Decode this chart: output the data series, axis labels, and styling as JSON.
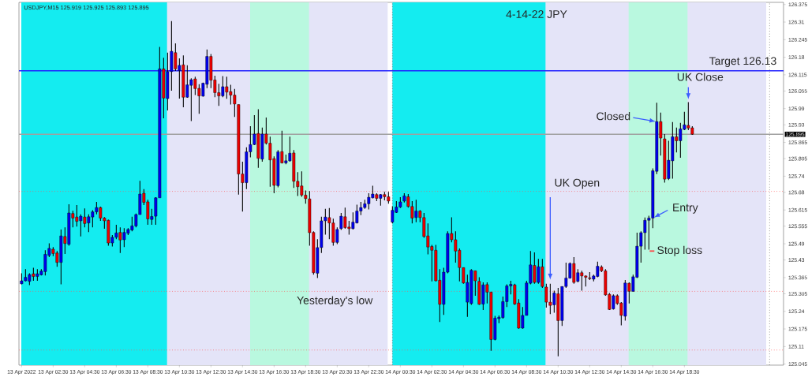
{
  "chart_data": {
    "type": "candlestick",
    "title": "4-14-22  JPY",
    "subtitle": "USDJPY,M15  125.919 125.925 125.893 125.895",
    "x": [
      "2022-04-13T00:30",
      "2022-04-13T00:45",
      "2022-04-13T01:00",
      "2022-04-13T01:15",
      "2022-04-13T01:30",
      "2022-04-13T01:45",
      "2022-04-13T02:00",
      "2022-04-13T02:15",
      "2022-04-13T02:30",
      "2022-04-13T02:45",
      "2022-04-13T03:00",
      "2022-04-13T03:15",
      "2022-04-13T03:30",
      "2022-04-13T03:45",
      "2022-04-13T04:00",
      "2022-04-13T04:15",
      "2022-04-13T04:30",
      "2022-04-13T04:45",
      "2022-04-13T05:00",
      "2022-04-13T05:15",
      "2022-04-13T05:30",
      "2022-04-13T05:45",
      "2022-04-13T06:00",
      "2022-04-13T06:15",
      "2022-04-13T06:30",
      "2022-04-13T06:45",
      "2022-04-13T07:00",
      "2022-04-13T07:15",
      "2022-04-13T07:30",
      "2022-04-13T07:45",
      "2022-04-13T08:00",
      "2022-04-13T08:15",
      "2022-04-13T08:30",
      "2022-04-13T08:45",
      "2022-04-13T09:00",
      "2022-04-13T09:15",
      "2022-04-13T09:30",
      "2022-04-13T09:45",
      "2022-04-13T10:00",
      "2022-04-13T10:15",
      "2022-04-13T10:30",
      "2022-04-13T10:45",
      "2022-04-13T11:00",
      "2022-04-13T11:15",
      "2022-04-13T11:30",
      "2022-04-13T11:45",
      "2022-04-13T12:00",
      "2022-04-13T12:15",
      "2022-04-13T12:30",
      "2022-04-13T12:45",
      "2022-04-13T13:00",
      "2022-04-13T13:15",
      "2022-04-13T13:30",
      "2022-04-13T13:45",
      "2022-04-13T14:00",
      "2022-04-13T14:15",
      "2022-04-13T14:30",
      "2022-04-13T14:45",
      "2022-04-13T15:00",
      "2022-04-13T15:15",
      "2022-04-13T15:30",
      "2022-04-13T15:45",
      "2022-04-13T16:00",
      "2022-04-13T16:15",
      "2022-04-13T16:30",
      "2022-04-13T16:45",
      "2022-04-13T17:00",
      "2022-04-13T17:15",
      "2022-04-13T17:30",
      "2022-04-13T17:45",
      "2022-04-13T18:00",
      "2022-04-13T18:15",
      "2022-04-13T18:30",
      "2022-04-13T18:45",
      "2022-04-13T19:00",
      "2022-04-13T19:15",
      "2022-04-13T19:30",
      "2022-04-13T19:45",
      "2022-04-13T20:00",
      "2022-04-13T20:15",
      "2022-04-13T20:30",
      "2022-04-13T20:45",
      "2022-04-13T21:00",
      "2022-04-13T21:15",
      "2022-04-13T21:30",
      "2022-04-13T21:45",
      "2022-04-13T22:00",
      "2022-04-13T22:15",
      "2022-04-13T22:30",
      "2022-04-13T22:45",
      "2022-04-13T23:00",
      "2022-04-13T23:15",
      "2022-04-13T23:30",
      "2022-04-13T23:45",
      "2022-04-14T00:00",
      "2022-04-14T00:15",
      "2022-04-14T00:30",
      "2022-04-14T00:45",
      "2022-04-14T01:00",
      "2022-04-14T01:15",
      "2022-04-14T01:30",
      "2022-04-14T01:45",
      "2022-04-14T02:00",
      "2022-04-14T02:15",
      "2022-04-14T02:30",
      "2022-04-14T02:45",
      "2022-04-14T03:00",
      "2022-04-14T03:15",
      "2022-04-14T03:30",
      "2022-04-14T03:45",
      "2022-04-14T04:00",
      "2022-04-14T04:15",
      "2022-04-14T04:30",
      "2022-04-14T04:45",
      "2022-04-14T05:00",
      "2022-04-14T05:15",
      "2022-04-14T05:30",
      "2022-04-14T05:45",
      "2022-04-14T06:00",
      "2022-04-14T06:15",
      "2022-04-14T06:30",
      "2022-04-14T06:45",
      "2022-04-14T07:00",
      "2022-04-14T07:15",
      "2022-04-14T07:30",
      "2022-04-14T07:45",
      "2022-04-14T08:00",
      "2022-04-14T08:15",
      "2022-04-14T08:30",
      "2022-04-14T08:45",
      "2022-04-14T09:00",
      "2022-04-14T09:15",
      "2022-04-14T09:30",
      "2022-04-14T09:45",
      "2022-04-14T10:00",
      "2022-04-14T10:15",
      "2022-04-14T10:30",
      "2022-04-14T10:45",
      "2022-04-14T11:00",
      "2022-04-14T11:15",
      "2022-04-14T11:30",
      "2022-04-14T11:45",
      "2022-04-14T12:00",
      "2022-04-14T12:15",
      "2022-04-14T12:30",
      "2022-04-14T12:45",
      "2022-04-14T13:00",
      "2022-04-14T13:15",
      "2022-04-14T13:30",
      "2022-04-14T13:45",
      "2022-04-14T14:00",
      "2022-04-14T14:15",
      "2022-04-14T14:30",
      "2022-04-14T14:45",
      "2022-04-14T15:00",
      "2022-04-14T15:15",
      "2022-04-14T15:30",
      "2022-04-14T15:45",
      "2022-04-14T16:00",
      "2022-04-14T16:15",
      "2022-04-14T16:30",
      "2022-04-14T16:45",
      "2022-04-14T17:00",
      "2022-04-14T17:15",
      "2022-04-14T17:30",
      "2022-04-14T17:45",
      "2022-04-14T18:00",
      "2022-04-14T18:15",
      "2022-04-14T18:30",
      "2022-04-14T18:45",
      "2022-04-14T19:00"
    ],
    "ohlc": [
      [
        125.342,
        125.381,
        125.34,
        125.353
      ],
      [
        125.353,
        125.396,
        125.351,
        125.366
      ],
      [
        125.351,
        125.381,
        125.337,
        125.376
      ],
      [
        125.379,
        125.401,
        125.353,
        125.369
      ],
      [
        125.369,
        125.396,
        125.353,
        125.379
      ],
      [
        125.375,
        125.396,
        125.373,
        125.389
      ],
      [
        125.387,
        125.466,
        125.373,
        125.451
      ],
      [
        125.447,
        125.492,
        125.441,
        125.473
      ],
      [
        125.47,
        125.478,
        125.444,
        125.454
      ],
      [
        125.456,
        125.463,
        125.405,
        125.421
      ],
      [
        125.421,
        125.543,
        125.34,
        125.519
      ],
      [
        125.517,
        125.551,
        125.452,
        125.491
      ],
      [
        125.488,
        125.636,
        125.483,
        125.604
      ],
      [
        125.602,
        125.612,
        125.551,
        125.585
      ],
      [
        125.589,
        125.633,
        125.554,
        125.573
      ],
      [
        125.575,
        125.599,
        125.517,
        125.592
      ],
      [
        125.589,
        125.621,
        125.551,
        125.565
      ],
      [
        125.567,
        125.599,
        125.533,
        125.59
      ],
      [
        125.589,
        125.614,
        125.551,
        125.608
      ],
      [
        125.608,
        125.645,
        125.599,
        125.624
      ],
      [
        125.624,
        125.627,
        125.575,
        125.585
      ],
      [
        125.585,
        125.589,
        125.546,
        125.575
      ],
      [
        125.577,
        125.579,
        125.483,
        125.493
      ],
      [
        125.493,
        125.522,
        125.48,
        125.514
      ],
      [
        125.514,
        125.56,
        125.507,
        125.53
      ],
      [
        125.532,
        125.551,
        125.456,
        125.504
      ],
      [
        125.505,
        125.548,
        125.478,
        125.532
      ],
      [
        125.529,
        125.548,
        125.522,
        125.543
      ],
      [
        125.541,
        125.59,
        125.536,
        125.556
      ],
      [
        125.556,
        125.602,
        125.551,
        125.598
      ],
      [
        125.598,
        125.723,
        125.598,
        125.674
      ],
      [
        125.677,
        125.692,
        125.633,
        125.643
      ],
      [
        125.645,
        125.653,
        125.56,
        125.582
      ],
      [
        125.58,
        125.619,
        125.56,
        125.591
      ],
      [
        125.592,
        125.662,
        125.56,
        125.66
      ],
      [
        125.66,
        126.218,
        125.66,
        126.137
      ],
      [
        126.137,
        126.178,
        125.954,
        126.029
      ],
      [
        126.027,
        126.197,
        125.983,
        126.127
      ],
      [
        126.127,
        126.314,
        126.056,
        126.202
      ],
      [
        126.197,
        126.231,
        126.129,
        126.137
      ],
      [
        126.131,
        126.176,
        126.027,
        126.15
      ],
      [
        126.152,
        126.187,
        125.995,
        126.032
      ],
      [
        126.032,
        126.15,
        126.03,
        126.078
      ],
      [
        126.076,
        126.102,
        125.944,
        126.097
      ],
      [
        126.1,
        126.108,
        126.04,
        126.064
      ],
      [
        126.065,
        126.08,
        125.971,
        126.037
      ],
      [
        126.036,
        126.086,
        126.034,
        126.084
      ],
      [
        126.08,
        126.209,
        126.066,
        126.183
      ],
      [
        126.183,
        126.192,
        126.066,
        126.095
      ],
      [
        126.096,
        126.112,
        126.032,
        126.049
      ],
      [
        126.049,
        126.082,
        126.0,
        126.037
      ],
      [
        126.037,
        126.11,
        126.032,
        126.071
      ],
      [
        126.071,
        126.108,
        126.026,
        126.051
      ],
      [
        126.053,
        126.078,
        126.005,
        126.04
      ],
      [
        126.04,
        126.063,
        125.959,
        126.007
      ],
      [
        126.005,
        126.005,
        125.672,
        125.748
      ],
      [
        125.748,
        125.794,
        125.609,
        125.716
      ],
      [
        125.716,
        125.847,
        125.692,
        125.83
      ],
      [
        125.83,
        125.925,
        125.81,
        125.857
      ],
      [
        125.857,
        125.966,
        125.855,
        125.896
      ],
      [
        125.898,
        125.988,
        125.771,
        125.806
      ],
      [
        125.803,
        125.92,
        125.794,
        125.896
      ],
      [
        125.896,
        125.957,
        125.857,
        125.862
      ],
      [
        125.862,
        125.886,
        125.701,
        125.8
      ],
      [
        125.805,
        125.813,
        125.677,
        125.706
      ],
      [
        125.705,
        125.837,
        125.699,
        125.83
      ],
      [
        125.831,
        125.908,
        125.787,
        125.789
      ],
      [
        125.789,
        125.82,
        125.784,
        125.797
      ],
      [
        125.797,
        125.886,
        125.794,
        125.825
      ],
      [
        125.826,
        125.837,
        125.697,
        125.721
      ],
      [
        125.721,
        125.755,
        125.667,
        125.701
      ],
      [
        125.704,
        125.758,
        125.664,
        125.67
      ],
      [
        125.67,
        125.687,
        125.638,
        125.657
      ],
      [
        125.656,
        125.685,
        125.483,
        125.531
      ],
      [
        125.532,
        125.536,
        125.376,
        125.383
      ],
      [
        125.381,
        125.507,
        125.363,
        125.476
      ],
      [
        125.476,
        125.59,
        125.456,
        125.575
      ],
      [
        125.575,
        125.619,
        125.524,
        125.589
      ],
      [
        125.587,
        125.622,
        125.507,
        125.567
      ],
      [
        125.567,
        125.583,
        125.483,
        125.495
      ],
      [
        125.495,
        125.551,
        125.489,
        125.543
      ],
      [
        125.546,
        125.604,
        125.541,
        125.592
      ],
      [
        125.59,
        125.624,
        125.546,
        125.55
      ],
      [
        125.552,
        125.575,
        125.524,
        125.546
      ],
      [
        125.546,
        125.606,
        125.543,
        125.57
      ],
      [
        125.567,
        125.635,
        125.565,
        125.611
      ],
      [
        125.611,
        125.645,
        125.596,
        125.624
      ],
      [
        125.624,
        125.653,
        125.619,
        125.638
      ],
      [
        125.638,
        125.677,
        125.617,
        125.662
      ],
      [
        125.66,
        125.705,
        125.658,
        125.674
      ],
      [
        125.672,
        125.677,
        125.648,
        125.658
      ],
      [
        125.658,
        125.674,
        125.631,
        125.672
      ],
      [
        125.672,
        125.682,
        125.651,
        125.664
      ],
      [
        125.664,
        125.682,
        125.638,
        125.648
      ],
      [
        125.57,
        125.628,
        125.565,
        125.614
      ],
      [
        125.606,
        125.648,
        125.604,
        125.626
      ],
      [
        125.626,
        125.662,
        125.622,
        125.645
      ],
      [
        125.648,
        125.677,
        125.643,
        125.667
      ],
      [
        125.664,
        125.674,
        125.624,
        125.628
      ],
      [
        125.628,
        125.648,
        125.565,
        125.585
      ],
      [
        125.587,
        125.653,
        125.57,
        125.611
      ],
      [
        125.611,
        125.614,
        125.57,
        125.587
      ],
      [
        125.587,
        125.604,
        125.512,
        125.517
      ],
      [
        125.519,
        125.565,
        125.451,
        125.478
      ],
      [
        125.48,
        125.486,
        125.351,
        125.466
      ],
      [
        125.466,
        125.486,
        125.351,
        125.353
      ],
      [
        125.355,
        125.396,
        125.201,
        125.266
      ],
      [
        125.266,
        125.401,
        125.227,
        125.385
      ],
      [
        125.385,
        125.536,
        125.381,
        125.528
      ],
      [
        125.528,
        125.588,
        125.495,
        125.505
      ],
      [
        125.505,
        125.536,
        125.42,
        125.463
      ],
      [
        125.466,
        125.473,
        125.351,
        125.402
      ],
      [
        125.402,
        125.402,
        125.342,
        125.345
      ],
      [
        125.274,
        125.376,
        125.22,
        125.347
      ],
      [
        125.269,
        125.396,
        125.264,
        125.392
      ],
      [
        125.39,
        125.39,
        125.298,
        125.353
      ],
      [
        125.351,
        125.366,
        125.264,
        125.266
      ],
      [
        125.267,
        125.347,
        125.245,
        125.338
      ],
      [
        125.339,
        125.347,
        125.269,
        125.311
      ],
      [
        125.311,
        125.313,
        125.094,
        125.136
      ],
      [
        125.136,
        125.223,
        125.133,
        125.215
      ],
      [
        125.213,
        125.225,
        125.196,
        125.218
      ],
      [
        125.217,
        125.295,
        125.213,
        125.276
      ],
      [
        125.276,
        125.34,
        125.256,
        125.334
      ],
      [
        125.334,
        125.353,
        125.303,
        125.34
      ],
      [
        125.338,
        125.342,
        125.264,
        125.267
      ],
      [
        125.271,
        125.285,
        125.176,
        125.178
      ],
      [
        125.178,
        125.256,
        125.176,
        125.225
      ],
      [
        125.225,
        125.353,
        125.225,
        125.345
      ],
      [
        125.344,
        125.463,
        125.34,
        125.412
      ],
      [
        125.41,
        125.458,
        125.342,
        125.347
      ],
      [
        125.347,
        125.434,
        125.342,
        125.405
      ],
      [
        125.405,
        125.434,
        125.327,
        125.332
      ],
      [
        125.33,
        125.342,
        125.254,
        125.274
      ],
      [
        125.274,
        125.342,
        125.23,
        125.262
      ],
      [
        125.264,
        125.317,
        125.235,
        125.308
      ],
      [
        125.305,
        125.327,
        125.074,
        125.206
      ],
      [
        125.206,
        125.332,
        125.186,
        125.332
      ],
      [
        125.332,
        125.42,
        125.327,
        125.363
      ],
      [
        125.363,
        125.421,
        125.361,
        125.417
      ],
      [
        125.417,
        125.441,
        125.342,
        125.347
      ],
      [
        125.351,
        125.396,
        125.347,
        125.383
      ],
      [
        125.383,
        125.39,
        125.317,
        125.371
      ],
      [
        125.371,
        125.373,
        125.332,
        125.366
      ],
      [
        125.364,
        125.385,
        125.356,
        125.361
      ],
      [
        125.359,
        125.376,
        125.351,
        125.371
      ],
      [
        125.369,
        125.424,
        125.366,
        125.407
      ],
      [
        125.404,
        125.41,
        125.385,
        125.39
      ],
      [
        125.39,
        125.396,
        125.298,
        125.301
      ],
      [
        125.303,
        125.308,
        125.245,
        125.247
      ],
      [
        125.249,
        125.303,
        125.247,
        125.298
      ],
      [
        125.298,
        125.303,
        125.264,
        125.269
      ],
      [
        125.271,
        125.274,
        125.188,
        125.225
      ],
      [
        125.222,
        125.356,
        125.206,
        125.345
      ],
      [
        125.344,
        125.347,
        125.269,
        125.314
      ],
      [
        125.314,
        125.376,
        125.313,
        125.368
      ],
      [
        125.366,
        125.531,
        125.363,
        125.481
      ],
      [
        125.481,
        125.536,
        125.42,
        125.531
      ],
      [
        125.531,
        125.587,
        125.468,
        125.577
      ],
      [
        125.577,
        125.594,
        125.468,
        125.585
      ],
      [
        125.585,
        125.769,
        125.548,
        125.76
      ],
      [
        125.758,
        126.012,
        125.748,
        125.942
      ],
      [
        125.942,
        125.975,
        125.816,
        125.881
      ],
      [
        125.878,
        125.896,
        125.716,
        125.729
      ],
      [
        125.731,
        125.871,
        125.726,
        125.799
      ],
      [
        125.797,
        125.94,
        125.731,
        125.886
      ],
      [
        125.886,
        125.92,
        125.828,
        125.871
      ],
      [
        125.871,
        125.937,
        125.808,
        125.915
      ],
      [
        125.913,
        125.978,
        125.91,
        125.93
      ],
      [
        125.928,
        126.014,
        125.91,
        125.918
      ],
      [
        125.919,
        125.925,
        125.893,
        125.895
      ]
    ],
    "colors": [
      "#0000ee",
      "#0000ee",
      "#0000ee",
      "#ee0000",
      "#0000ee",
      "#0000ee",
      "#0000ee",
      "#0000ee",
      "#ee0000",
      "#ee0000",
      "#0000ee",
      "#ee0000",
      "#0000ee",
      "#ee0000",
      "#ee0000",
      "#0000ee",
      "#ee0000",
      "#0000ee",
      "#0000ee",
      "#0000ee",
      "#ee0000",
      "#ee0000",
      "#ee0000",
      "#0000ee",
      "#0000ee",
      "#ee0000",
      "#0000ee",
      "#0000ee",
      "#0000ee",
      "#0000ee",
      "#0000ee",
      "#ee0000",
      "#ee0000",
      "#0000ee",
      "#0000ee",
      "#0000ee",
      "#ee0000",
      "#0000ee",
      "#0000ee",
      "#ee0000",
      "#0000ee",
      "#ee0000",
      "#0000ee",
      "#0000ee",
      "#ee0000",
      "#ee0000",
      "#0000ee",
      "#0000ee",
      "#ee0000",
      "#ee0000",
      "#ee0000",
      "#0000ee",
      "#ee0000",
      "#ee0000",
      "#ee0000",
      "#ee0000",
      "#ee0000",
      "#0000ee",
      "#0000ee",
      "#0000ee",
      "#ee0000",
      "#0000ee",
      "#ee0000",
      "#ee0000",
      "#ee0000",
      "#0000ee",
      "#ee0000",
      "#0000ee",
      "#0000ee",
      "#ee0000",
      "#ee0000",
      "#ee0000",
      "#ee0000",
      "#ee0000",
      "#ee0000",
      "#0000ee",
      "#0000ee",
      "#0000ee",
      "#ee0000",
      "#ee0000",
      "#0000ee",
      "#0000ee",
      "#ee0000",
      "#ee0000",
      "#0000ee",
      "#0000ee",
      "#0000ee",
      "#0000ee",
      "#0000ee",
      "#0000ee",
      "#ee0000",
      "#0000ee",
      "#ee0000",
      "#ee0000",
      "#0000ee",
      "#0000ee",
      "#0000ee",
      "#0000ee",
      "#ee0000",
      "#ee0000",
      "#0000ee",
      "#ee0000",
      "#ee0000",
      "#ee0000",
      "#ee0000",
      "#ee0000",
      "#ee0000",
      "#0000ee",
      "#0000ee",
      "#ee0000",
      "#ee0000",
      "#ee0000",
      "#ee0000",
      "#0000ee",
      "#0000ee",
      "#ee0000",
      "#ee0000",
      "#0000ee",
      "#ee0000",
      "#ee0000",
      "#0000ee",
      "#0000ee",
      "#0000ee",
      "#0000ee",
      "#0000ee",
      "#ee0000",
      "#ee0000",
      "#0000ee",
      "#0000ee",
      "#0000ee",
      "#ee0000",
      "#0000ee",
      "#ee0000",
      "#ee0000",
      "#ee0000",
      "#0000ee",
      "#ee0000",
      "#0000ee",
      "#0000ee",
      "#0000ee",
      "#ee0000",
      "#0000ee",
      "#ee0000",
      "#ee0000",
      "#ee0000",
      "#0000ee",
      "#0000ee",
      "#ee0000",
      "#ee0000",
      "#ee0000",
      "#0000ee",
      "#ee0000",
      "#ee0000",
      "#0000ee",
      "#ee0000",
      "#0000ee",
      "#0000ee",
      "#0000ee",
      "#0000ee",
      "#0000ee",
      "#0000ee",
      "#0000ee",
      "#ee0000",
      "#ee0000",
      "#0000ee",
      "#0000ee",
      "#ee0000",
      "#0000ee",
      "#0000ee",
      "#ee0000",
      "#ee0000"
    ],
    "xlim": [
      "2022-04-13T00:20",
      "2022-04-15T00:47"
    ],
    "xticks": [
      {
        "value": "2022-04-13T00:30",
        "label": "13 Apr 2022"
      },
      {
        "value": "2022-04-13T02:30",
        "label": "13 Apr 02:30"
      },
      {
        "value": "2022-04-13T04:30",
        "label": "13 Apr 04:30"
      },
      {
        "value": "2022-04-13T06:30",
        "label": "13 Apr 06:30"
      },
      {
        "value": "2022-04-13T08:30",
        "label": "13 Apr 08:30"
      },
      {
        "value": "2022-04-13T10:30",
        "label": "13 Apr 10:30"
      },
      {
        "value": "2022-04-13T12:30",
        "label": "13 Apr 12:30"
      },
      {
        "value": "2022-04-13T14:30",
        "label": "13 Apr 14:30"
      },
      {
        "value": "2022-04-13T16:30",
        "label": "13 Apr 16:30"
      },
      {
        "value": "2022-04-13T18:30",
        "label": "13 Apr 18:30"
      },
      {
        "value": "2022-04-13T20:30",
        "label": "13 Apr 20:30"
      },
      {
        "value": "2022-04-13T22:30",
        "label": "13 Apr 22:30"
      },
      {
        "value": "2022-04-14T00:30",
        "label": "14 Apr 00:30"
      },
      {
        "value": "2022-04-14T02:30",
        "label": "14 Apr 02:30"
      },
      {
        "value": "2022-04-14T04:30",
        "label": "14 Apr 04:30"
      },
      {
        "value": "2022-04-14T06:30",
        "label": "14 Apr 06:30"
      },
      {
        "value": "2022-04-14T08:30",
        "label": "14 Apr 08:30"
      },
      {
        "value": "2022-04-14T10:30",
        "label": "14 Apr 10:30"
      },
      {
        "value": "2022-04-14T12:30",
        "label": "14 Apr 12:30"
      },
      {
        "value": "2022-04-14T14:30",
        "label": "14 Apr 14:30"
      },
      {
        "value": "2022-04-14T16:30",
        "label": "14 Apr 16:30"
      },
      {
        "value": "2022-04-14T18:30",
        "label": "14 Apr 18:30"
      }
    ],
    "ylim": [
      125.041,
      126.383
    ],
    "yticks": [
      125.045,
      125.11,
      125.175,
      125.24,
      125.305,
      125.365,
      125.43,
      125.49,
      125.555,
      125.615,
      125.68,
      125.74,
      125.805,
      125.865,
      125.93,
      125.99,
      126.055,
      126.115,
      126.18,
      126.245,
      126.31,
      126.375
    ],
    "bands": [
      {
        "axis": "x",
        "from": "2022-04-13T00:29",
        "to": "2022-04-13T23:42",
        "color": "#e4e4f8"
      },
      {
        "axis": "x",
        "from": "2022-04-14T00:00",
        "to": "2022-04-14T23:41",
        "color": "#e4e4f8"
      },
      {
        "axis": "x",
        "from": "2022-04-13T00:29",
        "to": "2022-04-13T09:43",
        "color": "#14ecf0"
      },
      {
        "axis": "x",
        "from": "2022-04-14T00:00",
        "to": "2022-04-14T09:42",
        "color": "#14ecf0"
      },
      {
        "axis": "x",
        "from": "2022-04-13T14:59",
        "to": "2022-04-13T18:43",
        "color": "#b9f8df"
      },
      {
        "axis": "x",
        "from": "2022-04-14T14:58",
        "to": "2022-04-14T18:42",
        "color": "#b9f8df"
      }
    ],
    "ref_lines": [
      {
        "axis": "y",
        "value": 126.13,
        "label": "Target  126.13",
        "color": "#2020ff"
      },
      {
        "axis": "y",
        "value": 125.895,
        "label": "125.895",
        "color": "#a0a0a0"
      },
      {
        "axis": "y",
        "value": 125.684,
        "color": "#ff5050",
        "line_style": "dotted"
      },
      {
        "axis": "y",
        "value": 125.314,
        "label": "Yesterday's low",
        "color": "#ff5050",
        "line_style": "dotted"
      },
      {
        "axis": "y",
        "value": 125.097,
        "color": "#ff5050",
        "line_style": "dotted"
      },
      {
        "axis": "x",
        "value": "2022-04-14T00:00",
        "color": "#606060",
        "line_style": "dotted"
      },
      {
        "axis": "x",
        "value": "2022-04-14T23:54",
        "color": "#606060",
        "line_style": "dotted"
      }
    ],
    "annotations": [
      {
        "text": "UK Open",
        "x": "2022-04-14T10:00",
        "y": 125.353
      },
      {
        "text": "Closed",
        "x": "2022-04-14T16:45",
        "y": 125.942
      },
      {
        "text": "UK Close",
        "x": "2022-04-14T18:45",
        "y": 126.02
      },
      {
        "text": "Entry",
        "x": "2022-04-14T16:30",
        "y": 125.585
      },
      "Stop loss"
    ]
  }
}
